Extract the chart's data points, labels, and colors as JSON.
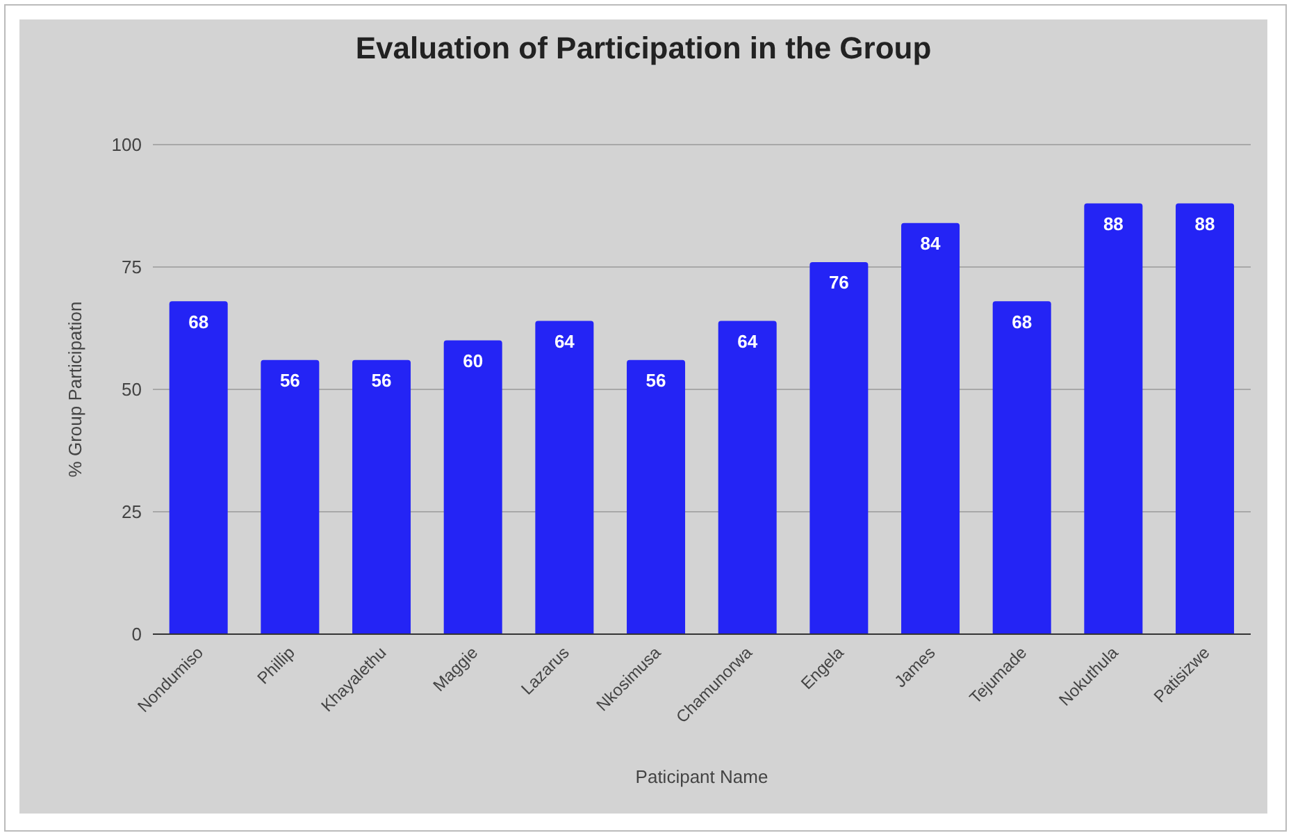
{
  "chart_data": {
    "type": "bar",
    "title": "Evaluation of Participation in the Group",
    "xlabel": "Paticipant Name",
    "ylabel": "% Group Participation",
    "categories": [
      "Nondumiso",
      "Phillip",
      "Khayalethu",
      "Maggie",
      "Lazarus",
      "Nkosimusa",
      "Chamunorwa",
      "Engela",
      "James",
      "Tejumade",
      "Nokuthula",
      "Patisizwe"
    ],
    "values": [
      68,
      56,
      56,
      60,
      64,
      56,
      64,
      76,
      84,
      68,
      88,
      88
    ],
    "color": "#2424f5",
    "ylim": [
      0,
      100
    ],
    "yticks": [
      0,
      25,
      50,
      75,
      100
    ],
    "grid": "y",
    "data_labels": true
  }
}
